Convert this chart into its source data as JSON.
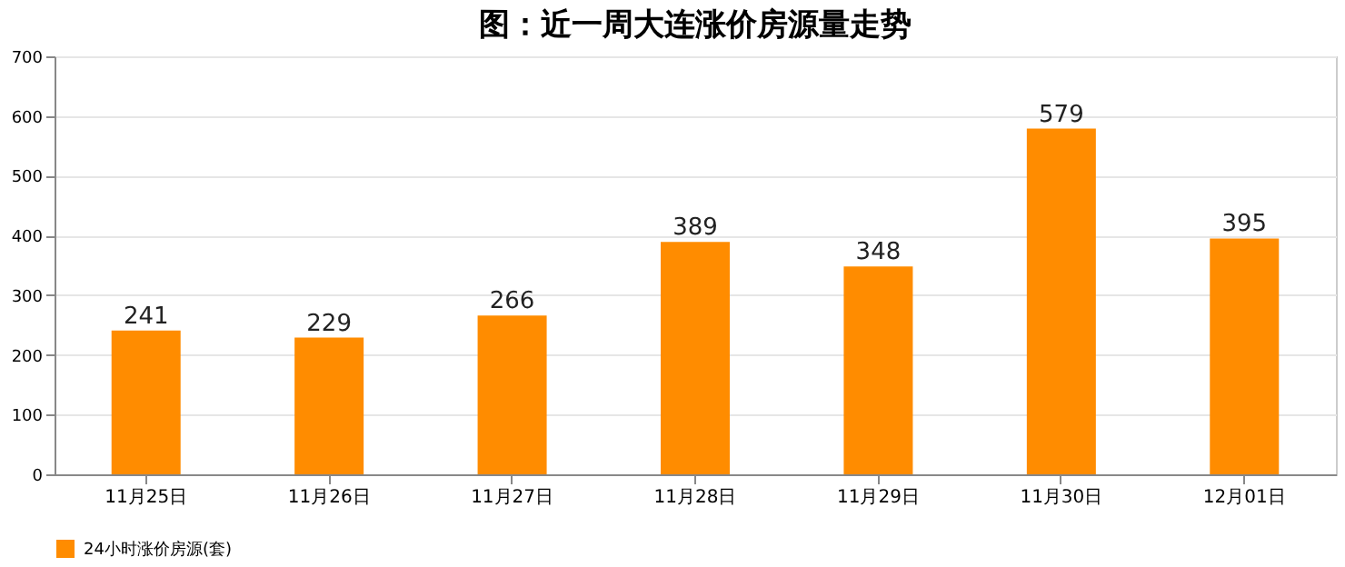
{
  "chart_data": {
    "type": "bar",
    "title": "图：近一周大连涨价房源量走势",
    "categories": [
      "11月25日",
      "11月26日",
      "11月27日",
      "11月28日",
      "11月29日",
      "11月30日",
      "12月01日"
    ],
    "series": [
      {
        "name": "24小时涨价房源(套)",
        "color": "#ff8c00",
        "values": [
          241,
          229,
          266,
          389,
          348,
          579,
          395
        ]
      }
    ],
    "ylim": [
      0,
      700
    ],
    "yticks": [
      0,
      100,
      200,
      300,
      400,
      500,
      600,
      700
    ],
    "grid": "y",
    "legend": "bottom",
    "data_labels": true
  }
}
